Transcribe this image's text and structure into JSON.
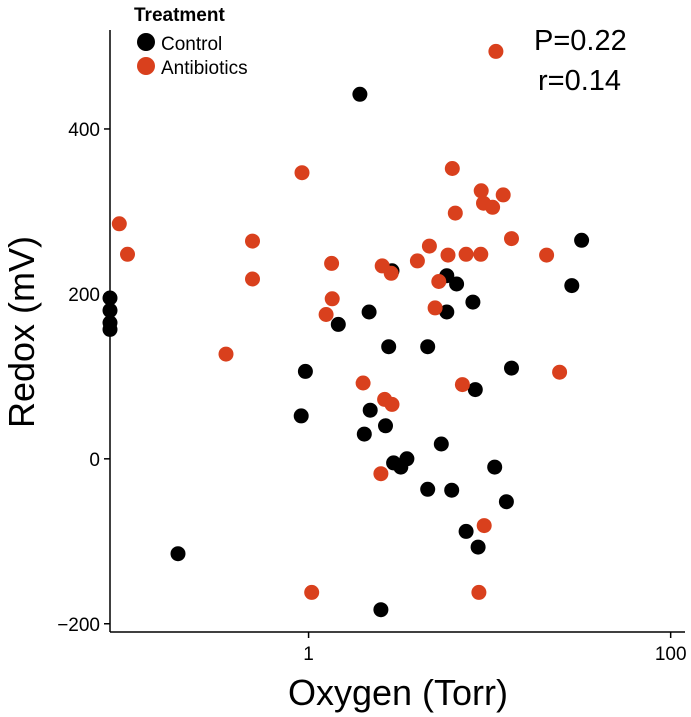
{
  "chart_data": {
    "type": "scatter",
    "xlabel": "Oxygen (Torr)",
    "ylabel": "Redox (mV)",
    "x_scale": "log",
    "xlim": [
      0.08,
      120
    ],
    "ylim": [
      -210,
      520
    ],
    "x_ticks": [
      1,
      100
    ],
    "x_tick_labels": [
      "1",
      "100"
    ],
    "y_ticks": [
      -200,
      0,
      200,
      400
    ],
    "y_tick_labels": [
      "−200",
      "0",
      "200",
      "400"
    ],
    "grid": false,
    "legend": {
      "title": "Treatment",
      "placement": "top-left"
    },
    "annotations": [
      "P=0.22",
      "r=0.14"
    ],
    "series": [
      {
        "name": "Control",
        "color": "#000000",
        "points": [
          [
            0.08,
            195
          ],
          [
            0.08,
            180
          ],
          [
            0.08,
            165
          ],
          [
            0.08,
            157
          ],
          [
            0.19,
            -115
          ],
          [
            0.91,
            52
          ],
          [
            0.96,
            106
          ],
          [
            1.46,
            163
          ],
          [
            1.92,
            442
          ],
          [
            2.03,
            30
          ],
          [
            2.16,
            178
          ],
          [
            2.19,
            59
          ],
          [
            2.51,
            -183
          ],
          [
            2.66,
            40
          ],
          [
            2.77,
            136
          ],
          [
            2.89,
            228
          ],
          [
            2.95,
            -5
          ],
          [
            3.23,
            -10
          ],
          [
            3.49,
            0
          ],
          [
            4.55,
            -37
          ],
          [
            4.55,
            136
          ],
          [
            5.41,
            18
          ],
          [
            5.8,
            222
          ],
          [
            5.8,
            178
          ],
          [
            6.17,
            -38
          ],
          [
            6.57,
            212
          ],
          [
            7.41,
            -88
          ],
          [
            8.08,
            190
          ],
          [
            8.33,
            84
          ],
          [
            8.64,
            -107
          ],
          [
            10.66,
            -10
          ],
          [
            12.38,
            -52
          ],
          [
            13.2,
            110
          ],
          [
            28.44,
            210
          ],
          [
            32.22,
            265
          ]
        ]
      },
      {
        "name": "Antibiotics",
        "color": "#d9401d",
        "points": [
          [
            0.09,
            285
          ],
          [
            0.1,
            248
          ],
          [
            0.35,
            127
          ],
          [
            0.49,
            264
          ],
          [
            0.49,
            218
          ],
          [
            0.92,
            347
          ],
          [
            1.04,
            -162
          ],
          [
            1.25,
            175
          ],
          [
            1.34,
            237
          ],
          [
            1.35,
            194
          ],
          [
            2.0,
            92
          ],
          [
            2.55,
            234
          ],
          [
            2.51,
            -18
          ],
          [
            2.63,
            72
          ],
          [
            2.89,
            66
          ],
          [
            2.86,
            225
          ],
          [
            3.99,
            240
          ],
          [
            4.65,
            258
          ],
          [
            5.0,
            183
          ],
          [
            5.24,
            215
          ],
          [
            5.89,
            247
          ],
          [
            6.22,
            352
          ],
          [
            6.46,
            298
          ],
          [
            7.07,
            90
          ],
          [
            7.41,
            248
          ],
          [
            8.72,
            -162
          ],
          [
            8.98,
            325
          ],
          [
            8.94,
            248
          ],
          [
            9.25,
            310
          ],
          [
            9.33,
            -81
          ],
          [
            10.38,
            305
          ],
          [
            10.83,
            494
          ],
          [
            11.88,
            320
          ],
          [
            13.2,
            267
          ],
          [
            20.64,
            247
          ],
          [
            24.35,
            105
          ]
        ]
      }
    ]
  }
}
